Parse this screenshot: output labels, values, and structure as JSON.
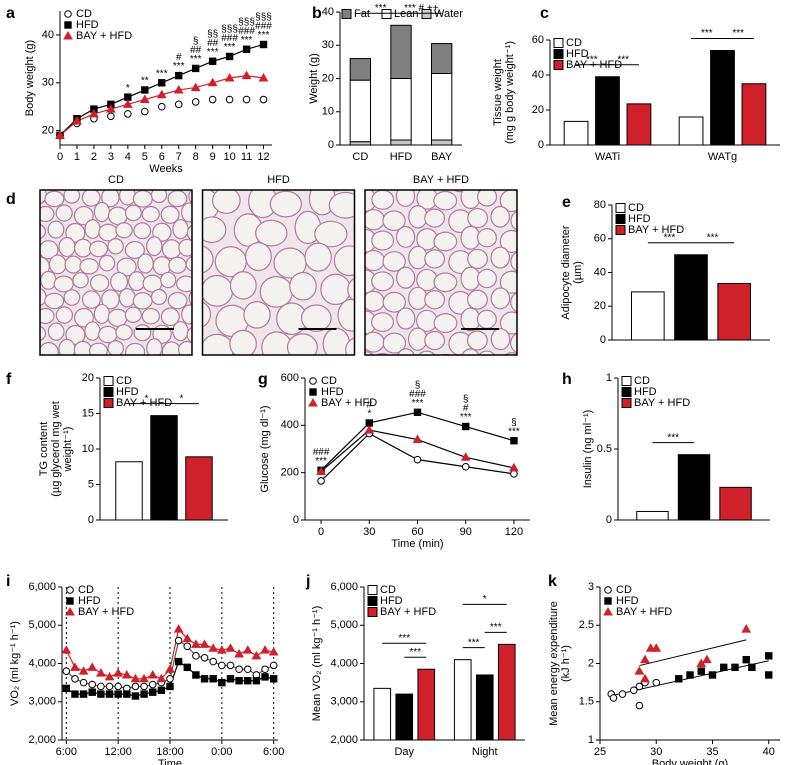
{
  "chart_data": [
    {
      "type": "line",
      "panel": "a",
      "ylabel": [
        "Body weight (g)"
      ],
      "xlabel": "Weeks",
      "x": [
        0,
        1,
        2,
        3,
        4,
        5,
        6,
        7,
        8,
        9,
        10,
        11,
        12
      ],
      "xlim": [
        0,
        12.5
      ],
      "xticks": [
        0,
        1,
        2,
        3,
        4,
        5,
        6,
        7,
        8,
        9,
        10,
        11,
        12
      ],
      "ylim": [
        17,
        45
      ],
      "yticks": [
        20,
        30,
        40
      ],
      "legend": "upper left",
      "series": [
        {
          "name": "CD",
          "marker": "circle",
          "color": "#ffffff",
          "values": [
            19,
            21.5,
            22.5,
            23,
            23.5,
            24,
            25,
            25.5,
            26,
            26.5,
            26.5,
            26.5,
            26.5
          ]
        },
        {
          "name": "HFD",
          "marker": "square",
          "color": "#000000",
          "line_color": "#000000",
          "values": [
            19,
            22.5,
            24.5,
            25.5,
            27,
            28.5,
            30,
            31.5,
            33,
            34.5,
            35.5,
            37,
            38
          ]
        },
        {
          "name": "BAY + HFD",
          "marker": "triangle",
          "color": "#d0202a",
          "line_color": "#d0202a",
          "values": [
            19,
            22,
            23.5,
            24.5,
            25.5,
            26.5,
            27.5,
            28.5,
            29,
            30,
            31,
            31.5,
            31
          ]
        }
      ],
      "annotations": [
        {
          "x": 4,
          "lines": [
            "*"
          ]
        },
        {
          "x": 5,
          "lines": [
            "**"
          ]
        },
        {
          "x": 6,
          "lines": [
            "***"
          ]
        },
        {
          "x": 7,
          "lines": [
            "#",
            "***"
          ]
        },
        {
          "x": 8,
          "lines": [
            "§",
            "##",
            "***"
          ]
        },
        {
          "x": 9,
          "lines": [
            "§§",
            "##",
            "***"
          ]
        },
        {
          "x": 10,
          "lines": [
            "§§§",
            "###",
            "***"
          ]
        },
        {
          "x": 11,
          "lines": [
            "§§§",
            "###",
            "***"
          ]
        },
        {
          "x": 12,
          "lines": [
            "§§§",
            "###",
            "***"
          ]
        }
      ]
    },
    {
      "type": "stacked_bar",
      "panel": "b",
      "ylabel": [
        "Weight (g)"
      ],
      "categories": [
        "CD",
        "HFD",
        "BAY"
      ],
      "ylim": [
        0,
        40
      ],
      "yticks": [
        0,
        10,
        20,
        30,
        40
      ],
      "legend": "top",
      "series": [
        {
          "name": "Fat",
          "color": "#808080",
          "values": [
            6.5,
            16,
            9
          ]
        },
        {
          "name": "Lean",
          "color": "#ffffff",
          "values": [
            18.5,
            18.5,
            20
          ]
        },
        {
          "name": "Water",
          "color": "#c8c8c8",
          "values": [
            1,
            1.5,
            1.5
          ]
        }
      ],
      "annotations": [
        {
          "between": [
            0,
            1
          ],
          "text": "***"
        },
        {
          "between": [
            1,
            2
          ],
          "text": "*** # ++"
        }
      ]
    },
    {
      "type": "bar",
      "panel": "c",
      "ylabel": [
        "Tissue weight",
        "(mg g body weight⁻¹)"
      ],
      "categories": [
        "WATi",
        "WATg"
      ],
      "ylim": [
        0,
        60
      ],
      "yticks": [
        0,
        20,
        40,
        60
      ],
      "legend": "upper left",
      "series": [
        {
          "name": "CD",
          "color": "#ffffff",
          "values": [
            13.5,
            16
          ]
        },
        {
          "name": "HFD",
          "color": "#000000",
          "values": [
            39,
            54
          ]
        },
        {
          "name": "BAY + HFD",
          "color": "#d0202a",
          "values": [
            23.5,
            35
          ]
        }
      ],
      "annotations": [
        {
          "group": 0,
          "between": [
            0,
            1
          ],
          "text": "***"
        },
        {
          "group": 0,
          "between": [
            1,
            2
          ],
          "text": "***"
        },
        {
          "group": 1,
          "between": [
            0,
            1
          ],
          "text": "***"
        },
        {
          "group": 1,
          "between": [
            1,
            2
          ],
          "text": "***"
        }
      ]
    },
    {
      "type": "bar",
      "panel": "e",
      "ylabel": [
        "Adipocyte diameter",
        "(µm)"
      ],
      "ylim": [
        0,
        80
      ],
      "yticks": [
        0,
        20,
        40,
        60,
        80
      ],
      "legend": "upper left",
      "series": [
        {
          "name": "CD",
          "color": "#ffffff",
          "values": [
            28.5
          ]
        },
        {
          "name": "HFD",
          "color": "#000000",
          "values": [
            50.5
          ]
        },
        {
          "name": "BAY + HFD",
          "color": "#d0202a",
          "values": [
            33.5
          ]
        }
      ],
      "annotations": [
        {
          "between": [
            0,
            1
          ],
          "text": "***"
        },
        {
          "between": [
            1,
            2
          ],
          "text": "***"
        }
      ]
    },
    {
      "type": "bar",
      "panel": "f",
      "ylabel": [
        "TG content",
        "(µg glycerol mg wet",
        "weight⁻¹)"
      ],
      "ylim": [
        0,
        20
      ],
      "yticks": [
        0,
        5,
        10,
        15,
        20
      ],
      "legend": "upper left",
      "series": [
        {
          "name": "CD",
          "color": "#ffffff",
          "values": [
            8.2
          ]
        },
        {
          "name": "HFD",
          "color": "#000000",
          "values": [
            14.7
          ]
        },
        {
          "name": "BAY + HFD",
          "color": "#d0202a",
          "values": [
            8.9
          ]
        }
      ],
      "annotations": [
        {
          "between": [
            0,
            1
          ],
          "text": "*"
        },
        {
          "between": [
            1,
            2
          ],
          "text": "*"
        }
      ]
    },
    {
      "type": "line",
      "panel": "g",
      "ylabel": [
        "Glucose (mg dl⁻¹)"
      ],
      "xlabel": "Time (min)",
      "x": [
        0,
        30,
        60,
        90,
        120
      ],
      "xlim": [
        -10,
        130
      ],
      "xticks": [
        0,
        30,
        60,
        90,
        120
      ],
      "ylim": [
        0,
        600
      ],
      "yticks": [
        0,
        200,
        400,
        600
      ],
      "legend": "upper left",
      "series": [
        {
          "name": "CD",
          "marker": "circle",
          "color": "#ffffff",
          "line_color": "#000000",
          "values": [
            165,
            365,
            255,
            225,
            195
          ]
        },
        {
          "name": "HFD",
          "marker": "square",
          "color": "#000000",
          "line_color": "#000000",
          "values": [
            210,
            410,
            455,
            395,
            335
          ]
        },
        {
          "name": "BAY + HFD",
          "marker": "triangle",
          "color": "#d0202a",
          "line_color": "#000000",
          "values": [
            205,
            380,
            340,
            265,
            220
          ]
        }
      ],
      "annotations": [
        {
          "x": 0,
          "lines": [
            "###",
            "***"
          ]
        },
        {
          "x": 30,
          "lines": [
            "#",
            "*"
          ]
        },
        {
          "x": 60,
          "lines": [
            "§",
            "###",
            "***"
          ]
        },
        {
          "x": 90,
          "lines": [
            "§",
            "#",
            "***"
          ]
        },
        {
          "x": 120,
          "lines": [
            "§",
            "***"
          ]
        }
      ]
    },
    {
      "type": "bar",
      "panel": "h",
      "ylabel": [
        "Insulin (ng ml⁻¹)"
      ],
      "ylim": [
        0,
        1
      ],
      "yticks": [
        0,
        0.5,
        1
      ],
      "legend": "upper left",
      "series": [
        {
          "name": "CD",
          "color": "#ffffff",
          "values": [
            0.06
          ]
        },
        {
          "name": "HFD",
          "color": "#000000",
          "values": [
            0.46
          ]
        },
        {
          "name": "BAY + HFD",
          "color": "#d0202a",
          "values": [
            0.23
          ]
        }
      ],
      "annotations": [
        {
          "between": [
            0,
            1
          ],
          "text": "***"
        }
      ]
    },
    {
      "type": "line",
      "panel": "i",
      "ylabel": [
        "VO₂ (ml kg⁻¹ h⁻¹)"
      ],
      "xlabel": "Time",
      "x": [
        6,
        7,
        8,
        9,
        10,
        11,
        12,
        13,
        14,
        15,
        16,
        17,
        18,
        19,
        20,
        21,
        22,
        23,
        24,
        25,
        26,
        27,
        28,
        29,
        30
      ],
      "xlim": [
        5.5,
        30.5
      ],
      "xticks": [
        {
          "value": 6,
          "label": "6:00"
        },
        {
          "value": 12,
          "label": "12:00"
        },
        {
          "value": 18,
          "label": "18:00"
        },
        {
          "value": 24,
          "label": "0:00"
        },
        {
          "value": 30,
          "label": "6:00"
        }
      ],
      "vlines": true,
      "ylim": [
        2000,
        6000
      ],
      "yticks": [
        {
          "value": 2000,
          "label": "2,000"
        },
        {
          "value": 3000,
          "label": "3,000"
        },
        {
          "value": 4000,
          "label": "4,000"
        },
        {
          "value": 5000,
          "label": "5,000"
        },
        {
          "value": 6000,
          "label": "6,000"
        }
      ],
      "legend": "upper left",
      "series": [
        {
          "name": "CD",
          "marker": "circle",
          "color": "#ffffff",
          "line_color": "#555555",
          "values": [
            3800,
            3600,
            3500,
            3450,
            3400,
            3400,
            3400,
            3350,
            3400,
            3400,
            3450,
            3500,
            3600,
            4600,
            4450,
            4200,
            4150,
            4050,
            3950,
            3950,
            3850,
            3850,
            3700,
            3850,
            3950
          ]
        },
        {
          "name": "HFD",
          "marker": "square",
          "color": "#000000",
          "line_color": "#000000",
          "values": [
            3350,
            3200,
            3200,
            3250,
            3200,
            3200,
            3200,
            3200,
            3150,
            3200,
            3250,
            3300,
            3400,
            4050,
            3900,
            3700,
            3600,
            3600,
            3500,
            3600,
            3550,
            3550,
            3550,
            3650,
            3600
          ]
        },
        {
          "name": "BAY + HFD",
          "marker": "triangle",
          "color": "#d0202a",
          "line_color": "#d0202a",
          "values": [
            4350,
            3900,
            3800,
            3900,
            3750,
            3650,
            3750,
            3700,
            3600,
            3600,
            3700,
            3600,
            3850,
            4900,
            4650,
            4500,
            4500,
            4400,
            4350,
            4400,
            4250,
            4350,
            4200,
            4350,
            4300
          ]
        }
      ]
    },
    {
      "type": "bar",
      "panel": "j",
      "ylabel": [
        "Mean VO₂ (ml kg⁻¹ h⁻¹)"
      ],
      "categories": [
        "Day",
        "Night"
      ],
      "ylim": [
        2000,
        6000
      ],
      "yticks": [
        {
          "value": 2000,
          "label": "2,000"
        },
        {
          "value": 3000,
          "label": "3,000"
        },
        {
          "value": 4000,
          "label": "4,000"
        },
        {
          "value": 5000,
          "label": "5,000"
        },
        {
          "value": 6000,
          "label": "6,000"
        }
      ],
      "legend": "upper left",
      "series": [
        {
          "name": "CD",
          "color": "#ffffff",
          "values": [
            3350,
            4100
          ]
        },
        {
          "name": "HFD",
          "color": "#000000",
          "values": [
            3200,
            3700
          ]
        },
        {
          "name": "BAY + HFD",
          "color": "#d0202a",
          "values": [
            3850,
            4500
          ]
        }
      ],
      "annotations": [
        {
          "group": 0,
          "between": [
            1,
            2
          ],
          "text": "***"
        },
        {
          "group": 0,
          "between": [
            0,
            2
          ],
          "text": "***"
        },
        {
          "group": 1,
          "between": [
            0,
            1
          ],
          "text": "***"
        },
        {
          "group": 1,
          "between": [
            1,
            2
          ],
          "text": "***"
        },
        {
          "group": 1,
          "between": [
            0,
            2
          ],
          "text": "*"
        }
      ]
    },
    {
      "type": "scatter",
      "panel": "k",
      "ylabel": [
        "Mean energy expenditure",
        "(kJ h⁻¹)"
      ],
      "xlabel": "Body weight (g)",
      "xlim": [
        25,
        41
      ],
      "xticks": [
        25,
        30,
        35,
        40
      ],
      "ylim": [
        1,
        3
      ],
      "yticks": [
        1,
        1.5,
        2,
        2.5,
        3
      ],
      "legend": "upper left",
      "series": [
        {
          "name": "CD",
          "marker": "circle",
          "color": "#ffffff",
          "x": [
            26,
            26.2,
            27,
            28,
            28.5,
            29,
            30,
            28.5
          ],
          "values": [
            1.6,
            1.55,
            1.6,
            1.65,
            1.45,
            1.75,
            1.75,
            1.7
          ]
        },
        {
          "name": "HFD",
          "marker": "square",
          "color": "#000000",
          "x": [
            32,
            33,
            34,
            35,
            36,
            37,
            38,
            38.5,
            40,
            40
          ],
          "values": [
            1.8,
            1.85,
            1.9,
            1.85,
            1.95,
            1.95,
            2.05,
            1.95,
            2.1,
            1.85
          ]
        },
        {
          "name": "BAY + HFD",
          "marker": "triangle",
          "color": "#d0202a",
          "x": [
            28.5,
            29,
            29.5,
            30,
            34,
            34.5,
            38,
            29
          ],
          "values": [
            1.9,
            2.05,
            2.2,
            2.2,
            2.0,
            2.05,
            2.45,
            1.8
          ]
        }
      ],
      "trendlines": [
        {
          "series": [
            0,
            1
          ]
        },
        {
          "series": [
            2
          ]
        }
      ]
    }
  ],
  "micrographs": {
    "panel": "d",
    "titles": [
      "CD",
      "HFD",
      "BAY + HFD"
    ]
  }
}
